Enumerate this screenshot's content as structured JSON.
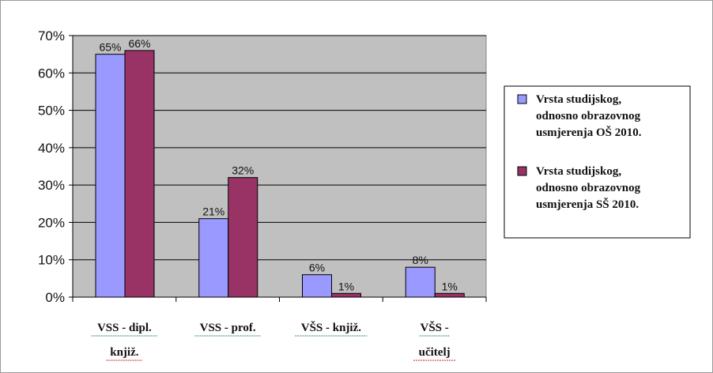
{
  "chart_data": {
    "type": "bar",
    "categories": [
      [
        "VSS - dipl.",
        "knjiž."
      ],
      [
        "VSS - prof."
      ],
      [
        "VŠS - knjiž."
      ],
      [
        "VŠS -",
        "učitelj"
      ]
    ],
    "series": [
      {
        "name": [
          "Vrsta studijskog,",
          "odnosno obrazovnog",
          "usmjerenja OŠ 2010."
        ],
        "values": [
          65,
          21,
          6,
          8
        ],
        "labels": [
          "65%",
          "21%",
          "6%",
          "8%"
        ],
        "color": "#9999ff"
      },
      {
        "name": [
          "Vrsta studijskog,",
          "odnosno obrazovnog",
          "usmjerenja SŠ 2010."
        ],
        "values": [
          66,
          32,
          1,
          1
        ],
        "labels": [
          "66%",
          "32%",
          "1%",
          "1%"
        ],
        "color": "#993366"
      }
    ],
    "yticks": [
      "0%",
      "10%",
      "20%",
      "30%",
      "40%",
      "50%",
      "60%",
      "70%"
    ],
    "ylim": [
      0,
      70
    ],
    "grid": true,
    "plot_background": "#c0c0c0",
    "legend_position": "right",
    "title": "",
    "xlabel": "",
    "ylabel": ""
  }
}
